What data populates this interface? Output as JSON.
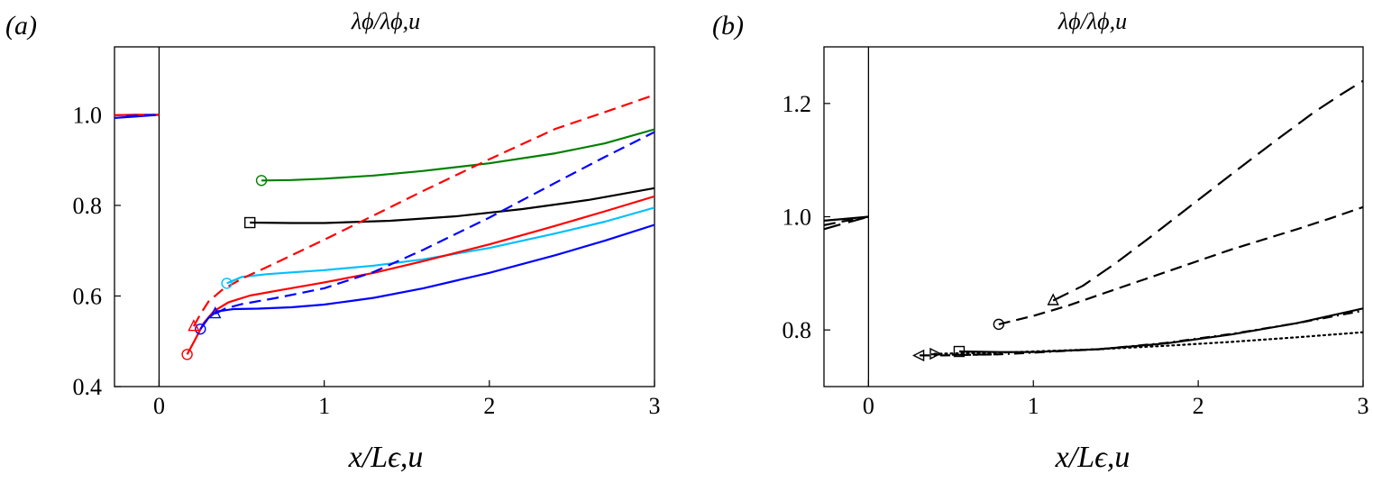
{
  "chart_data": [
    {
      "type": "line",
      "panel_label": "(a)",
      "title": "λϕ/λϕ,u",
      "xlabel": "x/Lϵ,u",
      "ylabel": "",
      "xlim": [
        -0.27,
        3.0
      ],
      "ylim": [
        0.4,
        1.15
      ],
      "xticks": [
        0,
        1,
        2,
        3
      ],
      "yticks": [
        0.4,
        0.6,
        0.8,
        1.0
      ],
      "xtick_labels": [
        "0",
        "1",
        "2",
        "3"
      ],
      "ytick_labels": [
        "0.4",
        "0.6",
        "0.8",
        "1.0"
      ],
      "grid": false,
      "legend": "none",
      "vline_x": 0,
      "series": [
        {
          "color": "#0000ff",
          "dash": "solid",
          "marker": "none",
          "x": [
            -0.27,
            -0.15,
            0.0
          ],
          "y": [
            0.993,
            0.996,
            1.0
          ]
        },
        {
          "color": "#ff0000",
          "dash": "solid",
          "marker": "none",
          "x": [
            -0.27,
            -0.15,
            0.0
          ],
          "y": [
            0.999,
            1.0,
            1.0
          ]
        },
        {
          "color": "#0000ff",
          "dash": "dashed",
          "marker": "none",
          "x": [
            -0.2,
            -0.1,
            0.0
          ],
          "y": [
            0.997,
            0.999,
            1.0
          ]
        },
        {
          "color": "#008000",
          "dash": "solid",
          "marker": "circle",
          "x": [
            0.62,
            0.8,
            1.0,
            1.3,
            1.6,
            2.0,
            2.4,
            2.7,
            3.0
          ],
          "y": [
            0.855,
            0.856,
            0.859,
            0.866,
            0.876,
            0.893,
            0.915,
            0.937,
            0.968
          ]
        },
        {
          "color": "#000000",
          "dash": "solid",
          "marker": "square",
          "x": [
            0.55,
            0.8,
            1.0,
            1.4,
            1.8,
            2.2,
            2.6,
            3.0
          ],
          "y": [
            0.762,
            0.761,
            0.761,
            0.766,
            0.776,
            0.792,
            0.812,
            0.838
          ]
        },
        {
          "color": "#00bfff",
          "dash": "solid",
          "marker": "circle",
          "x": [
            0.41,
            0.5,
            0.65,
            0.8,
            1.0,
            1.3,
            1.6,
            2.0,
            2.4,
            2.7,
            3.0
          ],
          "y": [
            0.628,
            0.642,
            0.648,
            0.652,
            0.657,
            0.667,
            0.681,
            0.706,
            0.738,
            0.764,
            0.795
          ]
        },
        {
          "color": "#ff0000",
          "dash": "solid",
          "marker": "circle",
          "x": [
            0.17,
            0.22,
            0.27,
            0.33,
            0.42,
            0.55,
            0.75,
            1.0,
            1.3,
            1.6,
            2.0,
            2.4,
            2.7,
            3.0
          ],
          "y": [
            0.471,
            0.505,
            0.54,
            0.566,
            0.586,
            0.601,
            0.614,
            0.63,
            0.651,
            0.677,
            0.714,
            0.755,
            0.787,
            0.82
          ]
        },
        {
          "color": "#0000ff",
          "dash": "solid",
          "marker": "circle",
          "x": [
            0.25,
            0.3,
            0.35,
            0.45,
            0.6,
            0.8,
            1.0,
            1.3,
            1.6,
            2.0,
            2.4,
            2.7,
            3.0
          ],
          "y": [
            0.527,
            0.552,
            0.566,
            0.571,
            0.572,
            0.575,
            0.581,
            0.596,
            0.617,
            0.651,
            0.69,
            0.722,
            0.757
          ]
        },
        {
          "color": "#ff0000",
          "dash": "dashed",
          "marker": "triangle",
          "x": [
            0.21,
            0.25,
            0.3,
            0.38,
            0.5,
            0.7,
            1.0,
            1.3,
            1.6,
            2.0,
            2.4,
            2.7,
            3.0
          ],
          "y": [
            0.533,
            0.56,
            0.588,
            0.613,
            0.638,
            0.672,
            0.724,
            0.778,
            0.832,
            0.902,
            0.969,
            1.006,
            1.044
          ]
        },
        {
          "color": "#0000ff",
          "dash": "dashed",
          "marker": "triangle",
          "x": [
            0.34,
            0.4,
            0.5,
            0.7,
            1.0,
            1.3,
            1.6,
            2.0,
            2.4,
            2.7,
            3.0
          ],
          "y": [
            0.561,
            0.572,
            0.582,
            0.595,
            0.617,
            0.653,
            0.702,
            0.773,
            0.85,
            0.907,
            0.962
          ]
        }
      ]
    },
    {
      "type": "line",
      "panel_label": "(b)",
      "title": "λϕ/λϕ,u",
      "xlabel": "x/Lϵ,u",
      "ylabel": "",
      "xlim": [
        -0.27,
        3.0
      ],
      "ylim": [
        0.7,
        1.3
      ],
      "xticks": [
        0,
        1,
        2,
        3
      ],
      "yticks": [
        0.8,
        1.0,
        1.2
      ],
      "xtick_labels": [
        "0",
        "1",
        "2",
        "3"
      ],
      "ytick_labels": [
        "0.8",
        "1.0",
        "1.2"
      ],
      "grid": false,
      "legend": "none",
      "vline_x": 0,
      "series": [
        {
          "color": "#000000",
          "dash": "longdash",
          "marker": "none",
          "x": [
            -0.27,
            -0.15,
            0.0
          ],
          "y": [
            0.978,
            0.988,
            1.0
          ]
        },
        {
          "color": "#000000",
          "dash": "dashed",
          "marker": "none",
          "x": [
            -0.27,
            -0.15,
            0.0
          ],
          "y": [
            0.985,
            0.992,
            1.0
          ]
        },
        {
          "color": "#000000",
          "dash": "solid",
          "marker": "none",
          "x": [
            -0.27,
            -0.15,
            0.0
          ],
          "y": [
            0.993,
            0.996,
            1.0
          ]
        },
        {
          "color": "#000000",
          "dash": "longdash",
          "marker": "triangle",
          "x": [
            1.12,
            1.3,
            1.5,
            1.7,
            1.9,
            2.1,
            2.3,
            2.5,
            2.7,
            2.85,
            3.0
          ],
          "y": [
            0.852,
            0.878,
            0.918,
            0.962,
            1.007,
            1.052,
            1.097,
            1.141,
            1.184,
            1.213,
            1.24
          ]
        },
        {
          "color": "#000000",
          "dash": "dashed",
          "marker": "circle",
          "x": [
            0.79,
            1.0,
            1.2,
            1.4,
            1.6,
            1.8,
            2.0,
            2.2,
            2.4,
            2.6,
            2.8,
            3.0
          ],
          "y": [
            0.81,
            0.825,
            0.842,
            0.862,
            0.882,
            0.902,
            0.922,
            0.942,
            0.96,
            0.978,
            0.997,
            1.017
          ]
        },
        {
          "color": "#000000",
          "dash": "solid",
          "marker": "square",
          "x": [
            0.55,
            0.8,
            1.0,
            1.4,
            1.8,
            2.2,
            2.6,
            3.0
          ],
          "y": [
            0.762,
            0.761,
            0.761,
            0.766,
            0.776,
            0.792,
            0.812,
            0.838
          ]
        },
        {
          "color": "#000000",
          "dash": "dashdot",
          "marker": "none",
          "x": [
            0.38,
            0.55,
            0.8,
            1.0,
            1.4,
            1.8,
            2.2,
            2.6,
            3.0
          ],
          "y": [
            0.757,
            0.756,
            0.757,
            0.76,
            0.766,
            0.777,
            0.793,
            0.812,
            0.834
          ]
        },
        {
          "color": "#000000",
          "dash": "dashdot",
          "marker": "triangle-left",
          "x": [
            0.31,
            0.45,
            0.6,
            0.8
          ],
          "y": [
            0.755,
            0.755,
            0.756,
            0.757
          ]
        },
        {
          "color": "#000000",
          "dash": "dotted",
          "marker": "triangle-right",
          "x": [
            0.4,
            0.6,
            0.8,
            1.0,
            1.4,
            1.8,
            2.2,
            2.6,
            3.0
          ],
          "y": [
            0.758,
            0.759,
            0.76,
            0.762,
            0.766,
            0.772,
            0.779,
            0.787,
            0.796
          ]
        }
      ]
    }
  ]
}
